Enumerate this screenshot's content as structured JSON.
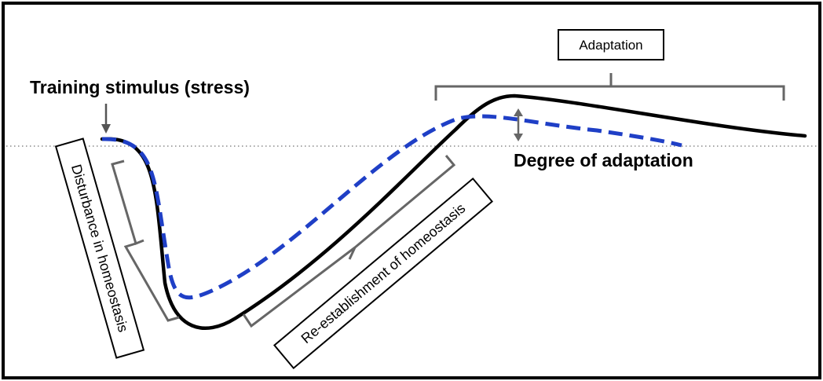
{
  "labels": {
    "training_stimulus": "Training stimulus (stress)",
    "degree_of_adaptation": "Degree of adaptation",
    "adaptation": "Adaptation",
    "disturbance": "Disturbance in homeostasis",
    "reestablishment": "Re-establishment of homeostasis"
  },
  "colors": {
    "frame": "#000000",
    "black_curve": "#000000",
    "blue_curve": "#1f3fc6",
    "bracket": "#666666",
    "baseline": "#8a8a8a"
  },
  "legend": []
}
